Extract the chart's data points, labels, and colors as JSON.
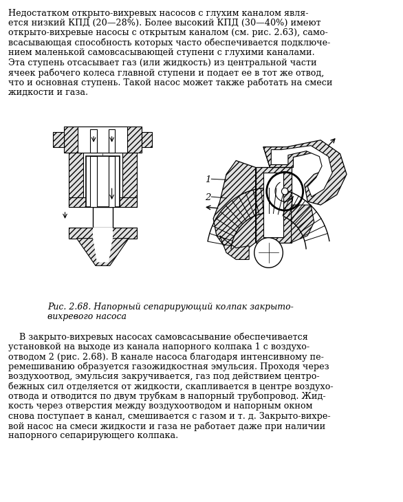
{
  "bg_color": "#ffffff",
  "text_color": "#000000",
  "para1_lines": [
    "Недостатком открыто-вихревых насосов с глухим каналом явля-",
    "ется низкий КПД (20—28%). Более высокий КПД (30—40%) имеют",
    "открыто-вихревые насосы с открытым каналом (см. рис. 2.63), само-",
    "всасывающая способность которых часто обеспечивается подключе-",
    "нием маленькой самовсасывающей ступени с глухими каналами.",
    "Эта ступень отсасывает газ (или жидкость) из центральной части",
    "ячеек рабочего колеса главной ступени и подает ее в тот же отвод,",
    "что и основная ступень. Такой насос может также работать на смеси",
    "жидкости и газа."
  ],
  "caption_line1": "Рис. 2.68. Напорный сепарирующий колпак закрыто-",
  "caption_line2": "вихревого насоса",
  "para2_lines": [
    "    В закрыто-вихревых насосах самовсасывание обеспечивается",
    "установкой на выходе из канала напорного колпака 1 с воздухо-",
    "отводом 2 (рис. 2.68). В канале насоса благодаря интенсивному пе-",
    "ремешиванию образуется газожидкостная эмульсия. Проходя через",
    "воздухоотвод, эмульсия закручивается, газ под действием центро-",
    "бежных сил отделяется от жидкости, скапливается в центре воздухо-",
    "отвода и отводится по двум трубкам в напорный трубопровод. Жид-",
    "кость через отверстия между воздухоотводом и напорным окном",
    "снова поступает в канал, смешивается с газом и т. д. Закрыто-вихре-",
    "вой насос на смеси жидкости и газа не работает даже при наличии",
    "напорного сепарирующего колпака."
  ],
  "font_size_body": 9.2,
  "font_size_caption": 9.0
}
